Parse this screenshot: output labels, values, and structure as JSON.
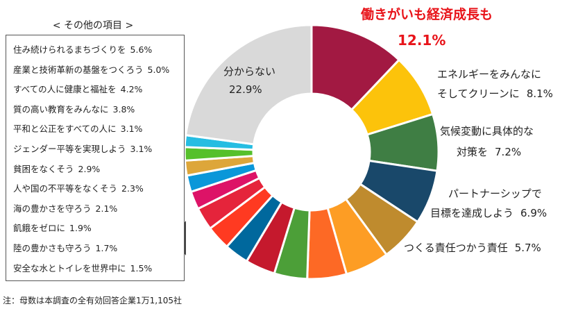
{
  "chart_data": {
    "type": "pie",
    "donut": true,
    "slices": [
      {
        "label": "働きがいも経済成長も",
        "value": 12.1,
        "color": "#A21942"
      },
      {
        "label": "エネルギーをみんなにそしてクリーンに",
        "value": 8.1,
        "color": "#FCC30B"
      },
      {
        "label": "気候変動に具体的な対策を",
        "value": 7.2,
        "color": "#3F7E44"
      },
      {
        "label": "パートナーシップで目標を達成しよう",
        "value": 6.9,
        "color": "#19486A"
      },
      {
        "label": "つくる責任つかう責任",
        "value": 5.7,
        "color": "#BF8B2E"
      },
      {
        "label": "住み続けられるまちづくりを",
        "value": 5.6,
        "color": "#FD9D24"
      },
      {
        "label": "産業と技術革新の基盤をつくろう",
        "value": 5.0,
        "color": "#FD6925"
      },
      {
        "label": "すべての人に健康と福祉を",
        "value": 4.2,
        "color": "#4C9F38"
      },
      {
        "label": "質の高い教育をみんなに",
        "value": 3.8,
        "color": "#C5192D"
      },
      {
        "label": "平和と公正をすべての人に",
        "value": 3.1,
        "color": "#00689D"
      },
      {
        "label": "ジェンダー平等を実現しよう",
        "value": 3.1,
        "color": "#FF3A21"
      },
      {
        "label": "貧困をなくそう",
        "value": 2.9,
        "color": "#E5243B"
      },
      {
        "label": "人や国の不平等をなくそう",
        "value": 2.3,
        "color": "#DD1367"
      },
      {
        "label": "海の豊かさを守ろう",
        "value": 2.1,
        "color": "#0A97D9"
      },
      {
        "label": "飢餓をゼロに",
        "value": 1.9,
        "color": "#DDA63A"
      },
      {
        "label": "陸の豊かさも守ろう",
        "value": 1.7,
        "color": "#56C02B"
      },
      {
        "label": "安全な水とトイレを世界中に",
        "value": 1.5,
        "color": "#26BDE2"
      },
      {
        "label": "分からない",
        "value": 22.9,
        "color": "#D9D9D9"
      }
    ],
    "labels": {
      "highlight_name": "働きがいも経済成長も",
      "highlight_value": "12.1%",
      "energy_line1": "エネルギーをみんなに",
      "energy_line2": "そしてクリーンに",
      "energy_value": "8.1%",
      "climate_line1": "気候変動に具体的な",
      "climate_line2": "対策を",
      "climate_value": "7.2%",
      "partner_line1": "パートナーシップで",
      "partner_line2": "目標を達成しよう",
      "partner_value": "6.9%",
      "responsible_name": "つくる責任つかう責任",
      "responsible_value": "5.7%",
      "unknown_name": "分からない",
      "unknown_value": "22.9%"
    },
    "others_title": "< その他の項目 >",
    "others": [
      {
        "label": "住み続けられるまちづくりを",
        "value": "5.6%"
      },
      {
        "label": "産業と技術革新の基盤をつくろう",
        "value": "5.0%"
      },
      {
        "label": "すべての人に健康と福祉を",
        "value": "4.2%"
      },
      {
        "label": "質の高い教育をみんなに",
        "value": "3.8%"
      },
      {
        "label": "平和と公正をすべての人に",
        "value": "3.1%"
      },
      {
        "label": "ジェンダー平等を実現しよう",
        "value": "3.1%"
      },
      {
        "label": "貧困をなくそう",
        "value": "2.9%"
      },
      {
        "label": "人や国の不平等をなくそう",
        "value": "2.3%"
      },
      {
        "label": "海の豊かさを守ろう",
        "value": "2.1%"
      },
      {
        "label": "飢餓をゼロに",
        "value": "1.9%"
      },
      {
        "label": "陸の豊かさも守ろう",
        "value": "1.7%"
      },
      {
        "label": "安全な水とトイレを世界中に",
        "value": "1.5%"
      }
    ],
    "note": "注：母数は本調査の全有効回答企業1万1,105社"
  }
}
